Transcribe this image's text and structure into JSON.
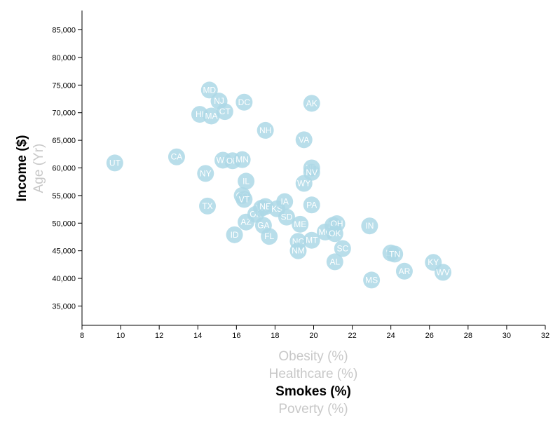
{
  "chart_data": {
    "type": "scatter",
    "x_axis": {
      "ticks": [
        8,
        10,
        12,
        14,
        16,
        18,
        20,
        22,
        24,
        26,
        28,
        30,
        32
      ],
      "range": [
        8,
        32
      ]
    },
    "y_axis": {
      "ticks": [
        35000,
        40000,
        45000,
        50000,
        55000,
        60000,
        65000,
        70000,
        75000,
        80000,
        85000
      ],
      "tick_labels": [
        "35,000",
        "40,000",
        "45,000",
        "50,000",
        "55,000",
        "60,000",
        "65,000",
        "70,000",
        "75,000",
        "80,000",
        "85,000"
      ],
      "range": [
        31500,
        88500
      ]
    },
    "x_labels": [
      {
        "text": "Obesity (%)",
        "active": false
      },
      {
        "text": "Healthcare (%)",
        "active": false
      },
      {
        "text": "Smokes (%)",
        "active": true
      },
      {
        "text": "Poverty (%)",
        "active": false
      }
    ],
    "y_labels": [
      {
        "text": "Income ($)",
        "active": true
      },
      {
        "text": "Age (Yr)",
        "active": false
      }
    ],
    "marker_color": "#add8e6",
    "points": [
      {
        "abbr": "UT",
        "x": 9.7,
        "y": 60900
      },
      {
        "abbr": "CA",
        "x": 12.9,
        "y": 62000
      },
      {
        "abbr": "HI",
        "x": 14.1,
        "y": 69700
      },
      {
        "abbr": "MD",
        "x": 14.6,
        "y": 74100
      },
      {
        "abbr": "MA",
        "x": 14.7,
        "y": 69400
      },
      {
        "abbr": "NJ",
        "x": 15.1,
        "y": 72100
      },
      {
        "abbr": "CT",
        "x": 15.4,
        "y": 70200
      },
      {
        "abbr": "DC",
        "x": 16.4,
        "y": 71900
      },
      {
        "abbr": "NY",
        "x": 14.4,
        "y": 59000
      },
      {
        "abbr": "TX",
        "x": 14.5,
        "y": 53100
      },
      {
        "abbr": "WA",
        "x": 15.3,
        "y": 61400
      },
      {
        "abbr": "OR",
        "x": 15.8,
        "y": 61300
      },
      {
        "abbr": "MN",
        "x": 16.3,
        "y": 61500
      },
      {
        "abbr": "IL",
        "x": 16.5,
        "y": 57600
      },
      {
        "abbr": "CO",
        "x": 16.3,
        "y": 55000
      },
      {
        "abbr": "VT",
        "x": 16.4,
        "y": 54300
      },
      {
        "abbr": "AZ",
        "x": 16.5,
        "y": 50200
      },
      {
        "abbr": "ID",
        "x": 15.9,
        "y": 47900
      },
      {
        "abbr": "OK",
        "x": 17.0,
        "y": 51600
      },
      {
        "abbr": "WI",
        "x": 17.3,
        "y": 52700
      },
      {
        "abbr": "NE",
        "x": 17.5,
        "y": 53000
      },
      {
        "abbr": "GA",
        "x": 17.4,
        "y": 49600
      },
      {
        "abbr": "FL",
        "x": 17.7,
        "y": 47600
      },
      {
        "abbr": "NH",
        "x": 17.5,
        "y": 66800
      },
      {
        "abbr": "KS",
        "x": 18.1,
        "y": 52600
      },
      {
        "abbr": "IA",
        "x": 18.5,
        "y": 53900
      },
      {
        "abbr": "SD",
        "x": 18.6,
        "y": 51100
      },
      {
        "abbr": "ME",
        "x": 19.3,
        "y": 49800
      },
      {
        "abbr": "NC",
        "x": 19.2,
        "y": 46700
      },
      {
        "abbr": "NM",
        "x": 19.2,
        "y": 45000
      },
      {
        "abbr": "MT",
        "x": 19.9,
        "y": 46900
      },
      {
        "abbr": "VA",
        "x": 19.5,
        "y": 65100
      },
      {
        "abbr": "WY",
        "x": 19.5,
        "y": 57200
      },
      {
        "abbr": "AK",
        "x": 19.9,
        "y": 71700
      },
      {
        "abbr": "ND",
        "x": 19.9,
        "y": 60000
      },
      {
        "abbr": "NV",
        "x": 19.9,
        "y": 59200
      },
      {
        "abbr": "PA",
        "x": 19.9,
        "y": 53300
      },
      {
        "abbr": "MO",
        "x": 20.6,
        "y": 48400
      },
      {
        "abbr": "MI",
        "x": 21.0,
        "y": 49600
      },
      {
        "abbr": "OH",
        "x": 21.2,
        "y": 49900
      },
      {
        "abbr": "OK",
        "x": 21.1,
        "y": 48100
      },
      {
        "abbr": "SC",
        "x": 21.5,
        "y": 45400
      },
      {
        "abbr": "AL",
        "x": 21.1,
        "y": 43000
      },
      {
        "abbr": "IN",
        "x": 22.9,
        "y": 49500
      },
      {
        "abbr": "LA",
        "x": 24.0,
        "y": 44600
      },
      {
        "abbr": "TN",
        "x": 24.2,
        "y": 44400
      },
      {
        "abbr": "MS",
        "x": 23.0,
        "y": 39700
      },
      {
        "abbr": "AR",
        "x": 24.7,
        "y": 41300
      },
      {
        "abbr": "KY",
        "x": 26.2,
        "y": 42900
      },
      {
        "abbr": "WV",
        "x": 26.7,
        "y": 41100
      }
    ]
  }
}
